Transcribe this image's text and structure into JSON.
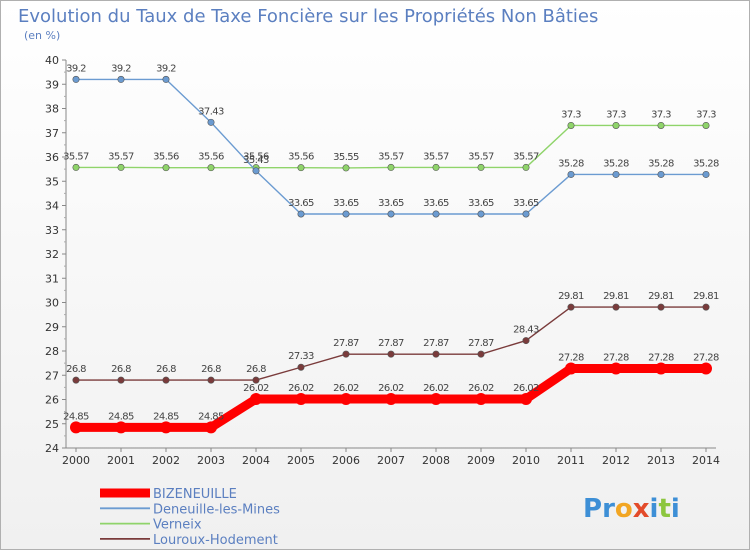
{
  "chart_data": {
    "type": "line",
    "title": "Evolution du Taux de Taxe Foncière sur les Propriétés Non Bâties",
    "subtitle": "(en %)",
    "xlabel": "",
    "ylabel": "",
    "ylim": [
      24,
      40
    ],
    "y_ticks": [
      "24",
      "25",
      "26",
      "27",
      "28",
      "29",
      "30",
      "31",
      "32",
      "33",
      "34",
      "35",
      "36",
      "37",
      "38",
      "39",
      "40"
    ],
    "x": [
      "2000",
      "2001",
      "2002",
      "2003",
      "2004",
      "2005",
      "2006",
      "2007",
      "2008",
      "2009",
      "2010",
      "2011",
      "2012",
      "2013",
      "2014"
    ],
    "grid": false,
    "legend_position": "bottom-left",
    "series": [
      {
        "name": "BIZENEUILLE",
        "color": "#ff0000",
        "values": [
          24.85,
          24.85,
          24.85,
          24.85,
          26.02,
          26.02,
          26.02,
          26.02,
          26.02,
          26.02,
          26.02,
          27.28,
          27.28,
          27.28,
          27.28
        ],
        "labels": [
          "24.85",
          "24.85",
          "24.85",
          "24.85",
          "26.02",
          "26.02",
          "26.02",
          "26.02",
          "26.02",
          "26.02",
          "26.02",
          "27.28",
          "27.28",
          "27.28",
          "27.28"
        ]
      },
      {
        "name": "Deneuille-les-Mines",
        "color": "#6b9bd1",
        "values": [
          39.2,
          39.2,
          39.2,
          37.43,
          35.43,
          33.65,
          33.65,
          33.65,
          33.65,
          33.65,
          33.65,
          35.28,
          35.28,
          35.28,
          35.28
        ],
        "labels": [
          "39.2",
          "39.2",
          "39.2",
          "37.43",
          "35.43",
          "33.65",
          "33.65",
          "33.65",
          "33.65",
          "33.65",
          "33.65",
          "35.28",
          "35.28",
          "35.28",
          "35.28"
        ]
      },
      {
        "name": "Verneix",
        "color": "#8fd46a",
        "values": [
          35.57,
          35.57,
          35.56,
          35.56,
          35.56,
          35.56,
          35.55,
          35.57,
          35.57,
          35.57,
          35.57,
          37.3,
          37.3,
          37.3,
          37.3
        ],
        "labels": [
          "35.57",
          "35.57",
          "35.56",
          "35.56",
          "35.56",
          "35.56",
          "35.55",
          "35.57",
          "35.57",
          "35.57",
          "35.57",
          "37.3",
          "37.3",
          "37.3",
          "37.3"
        ]
      },
      {
        "name": "Louroux-Hodement",
        "color": "#7a3b3b",
        "values": [
          26.8,
          26.8,
          26.8,
          26.8,
          26.8,
          27.33,
          27.87,
          27.87,
          27.87,
          27.87,
          28.43,
          29.81,
          29.81,
          29.81,
          29.81
        ],
        "labels": [
          "26.8",
          "26.8",
          "26.8",
          "26.8",
          "26.8",
          "27.33",
          "27.87",
          "27.87",
          "27.87",
          "27.87",
          "28.43",
          "29.81",
          "29.81",
          "29.81",
          "29.81"
        ]
      }
    ]
  },
  "logo": {
    "text": "Proxiti",
    "letters": [
      {
        "ch": "P",
        "color": "#3d8fd6"
      },
      {
        "ch": "r",
        "color": "#3d8fd6"
      },
      {
        "ch": "o",
        "color": "#f2a623"
      },
      {
        "ch": "x",
        "color": "#e34b2a"
      },
      {
        "ch": "i",
        "color": "#3d8fd6"
      },
      {
        "ch": "t",
        "color": "#8cc63f"
      },
      {
        "ch": "i",
        "color": "#3d8fd6"
      }
    ]
  }
}
